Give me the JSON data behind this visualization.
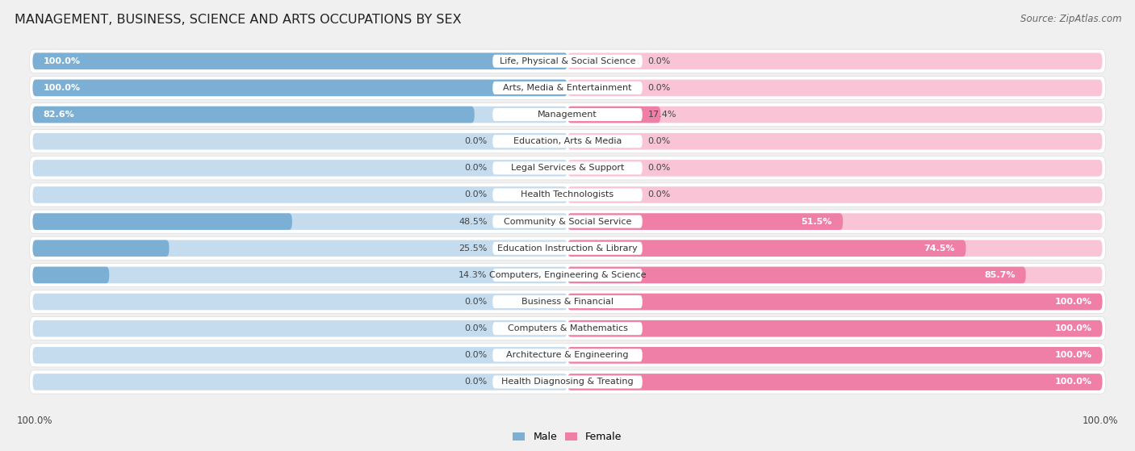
{
  "title": "MANAGEMENT, BUSINESS, SCIENCE AND ARTS OCCUPATIONS BY SEX",
  "source": "Source: ZipAtlas.com",
  "categories": [
    "Life, Physical & Social Science",
    "Arts, Media & Entertainment",
    "Management",
    "Education, Arts & Media",
    "Legal Services & Support",
    "Health Technologists",
    "Community & Social Service",
    "Education Instruction & Library",
    "Computers, Engineering & Science",
    "Business & Financial",
    "Computers & Mathematics",
    "Architecture & Engineering",
    "Health Diagnosing & Treating"
  ],
  "male": [
    100.0,
    100.0,
    82.6,
    0.0,
    0.0,
    0.0,
    48.5,
    25.5,
    14.3,
    0.0,
    0.0,
    0.0,
    0.0
  ],
  "female": [
    0.0,
    0.0,
    17.4,
    0.0,
    0.0,
    0.0,
    51.5,
    74.5,
    85.7,
    100.0,
    100.0,
    100.0,
    100.0
  ],
  "male_color": "#7bafd4",
  "female_color": "#f07fa8",
  "male_placeholder_color": "#c5dcef",
  "female_placeholder_color": "#f9c4d6",
  "background_color": "#f0f0f0",
  "row_bg_color": "#ffffff",
  "title_fontsize": 11.5,
  "source_fontsize": 8.5,
  "label_fontsize": 8.0,
  "pct_fontsize": 8.0
}
